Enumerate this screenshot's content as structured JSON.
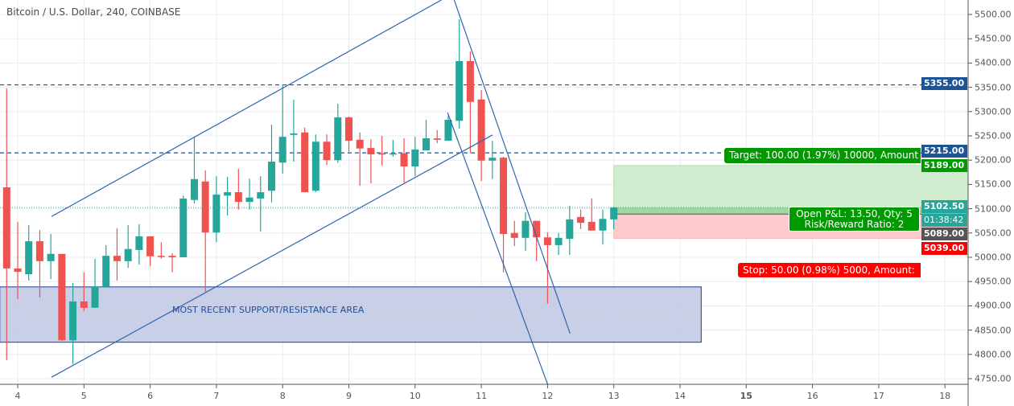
{
  "header": {
    "title": "Bitcoin / U.S. Dollar, 240, COINBASE"
  },
  "colors": {
    "up": "#26a69a",
    "down": "#ef5350",
    "drawing": "#2f66ad",
    "hline": "#1d4f8c",
    "support_fill": "#c5cce6",
    "support_border": "#1a3a9a",
    "target_fill": "#cfeccf",
    "stop_fill": "#fdcbcb",
    "target": "#009900",
    "stop": "#ff0000",
    "last_price": "#26a69a",
    "entry": "#555555",
    "level": "#1d5496"
  },
  "chart_data": {
    "type": "candlestick",
    "title": "Bitcoin / U.S. Dollar, 240, COINBASE",
    "interval_hours": 4,
    "first_candle_day": 3.8333,
    "xlim_days": [
      3.75,
      18.4
    ],
    "ylim": [
      4735,
      5530
    ],
    "x_ticks": [
      "4",
      "5",
      "6",
      "7",
      "8",
      "9",
      "10",
      "11",
      "12",
      "13",
      "14",
      "15",
      "16",
      "17",
      "18"
    ],
    "x_tick_bold": "15",
    "y_ticks": [
      "4750.00",
      "4800.00",
      "4850.00",
      "4900.00",
      "4950.00",
      "5000.00",
      "5050.00",
      "5100.00",
      "5150.00",
      "5200.00",
      "5250.00",
      "5300.00",
      "5350.00",
      "5400.00",
      "5450.00",
      "5500.00"
    ],
    "grid": true,
    "ohlc": [
      [
        5144,
        5348,
        4788,
        4977
      ],
      [
        4977,
        5073,
        4914,
        4970
      ],
      [
        4965,
        5066,
        4952,
        5033
      ],
      [
        5033,
        5056,
        4917,
        4992
      ],
      [
        4992,
        5048,
        4955,
        5007
      ],
      [
        5007,
        5007,
        4828,
        4829
      ],
      [
        4829,
        4947,
        4780,
        4909
      ],
      [
        4909,
        4969,
        4889,
        4896
      ],
      [
        4896,
        4997,
        4896,
        4940
      ],
      [
        4939,
        5025,
        4939,
        5003
      ],
      [
        5003,
        5060,
        4952,
        4992
      ],
      [
        4992,
        5066,
        4978,
        5017
      ],
      [
        5015,
        5068,
        4985,
        5043
      ],
      [
        5043,
        5043,
        4982,
        5002
      ],
      [
        5003,
        5031,
        4997,
        5002
      ],
      [
        5003,
        5008,
        4969,
        5000
      ],
      [
        5000,
        5127,
        5000,
        5121
      ],
      [
        5118,
        5247,
        5111,
        5161
      ],
      [
        5156,
        5179,
        4929,
        5051
      ],
      [
        5051,
        5167,
        5031,
        5129
      ],
      [
        5127,
        5166,
        5086,
        5134
      ],
      [
        5134,
        5182,
        5098,
        5114
      ],
      [
        5114,
        5162,
        5098,
        5123
      ],
      [
        5121,
        5167,
        5053,
        5134
      ],
      [
        5137,
        5273,
        5113,
        5197
      ],
      [
        5195,
        5354,
        5172,
        5248
      ],
      [
        5252,
        5325,
        5197,
        5255
      ],
      [
        5257,
        5267,
        5134,
        5134
      ],
      [
        5137,
        5253,
        5134,
        5238
      ],
      [
        5238,
        5253,
        5190,
        5200
      ],
      [
        5200,
        5316,
        5194,
        5288
      ],
      [
        5288,
        5290,
        5217,
        5240
      ],
      [
        5242,
        5257,
        5147,
        5224
      ],
      [
        5225,
        5243,
        5152,
        5212
      ],
      [
        5214,
        5250,
        5189,
        5212
      ],
      [
        5212,
        5242,
        5207,
        5214
      ],
      [
        5214,
        5245,
        5154,
        5187
      ],
      [
        5187,
        5248,
        5167,
        5222
      ],
      [
        5220,
        5283,
        5220,
        5245
      ],
      [
        5245,
        5262,
        5235,
        5242
      ],
      [
        5240,
        5291,
        5240,
        5283
      ],
      [
        5281,
        5490,
        5265,
        5404
      ],
      [
        5404,
        5424,
        5215,
        5320
      ],
      [
        5325,
        5344,
        5157,
        5199
      ],
      [
        5199,
        5240,
        5161,
        5205
      ],
      [
        5205,
        5207,
        4969,
        5048
      ],
      [
        5050,
        5075,
        5023,
        5040
      ],
      [
        5040,
        5093,
        5013,
        5075
      ],
      [
        5075,
        5075,
        4992,
        5041
      ],
      [
        5041,
        5051,
        4904,
        5025
      ],
      [
        5025,
        5050,
        5005,
        5040
      ],
      [
        5038,
        5106,
        5005,
        5078
      ],
      [
        5083,
        5098,
        5058,
        5071
      ],
      [
        5073,
        5121,
        5055,
        5055
      ],
      [
        5055,
        5098,
        5026,
        5079
      ],
      [
        5078,
        5104,
        5058,
        5102.5
      ]
    ],
    "drawings": {
      "trendlines": [
        {
          "name": "upper-channel",
          "from": [
            4.51,
            5084
          ],
          "to": [
            10.4,
            5530
          ]
        },
        {
          "name": "lower-channel",
          "from": [
            4.51,
            4753
          ],
          "to": [
            11.17,
            5252
          ]
        },
        {
          "name": "falling-line-outer",
          "from": [
            10.59,
            5530
          ],
          "to": [
            12.34,
            4843
          ]
        },
        {
          "name": "falling-line-inner",
          "from": [
            10.49,
            5298
          ],
          "to": [
            12.01,
            4735
          ]
        }
      ],
      "horizontal_levels": [
        5355,
        5215
      ],
      "support_area": {
        "label": "MOST RECENT SUPPORT/RESISTANCE AREA",
        "days": [
          3.73,
          14.32
        ],
        "prices": [
          4825,
          4939
        ]
      },
      "long_position": {
        "start_day": 13.0,
        "entry": 5089,
        "target": 5189,
        "stop": 5039
      }
    },
    "last_price": 5102.5
  },
  "labels": {
    "target": "Target: 100.00 (1.97%) 10000, Amount",
    "stop": "Stop: 50.00 (0.98%) 5000, Amount:",
    "pnl_line1": "Open P&L: 13.50, Qty: 5",
    "pnl_line2": "Risk/Reward Ratio: 2"
  },
  "price_axis_labels": {
    "level_high": "5355.00",
    "level_mid": "5215.00",
    "target": "5189.00",
    "last": "5102.50",
    "countdown": "01:38:42",
    "entry": "5089.00",
    "stop": "5039.00"
  }
}
